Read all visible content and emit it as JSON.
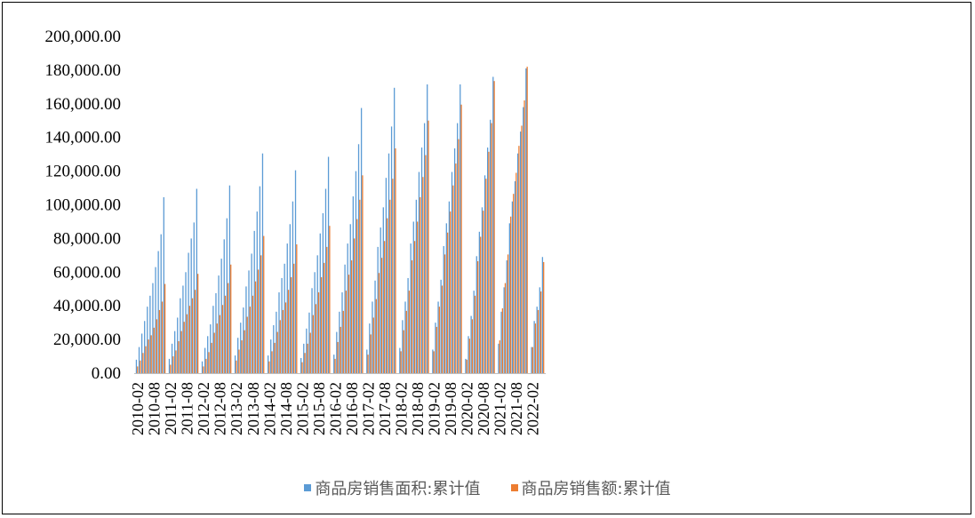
{
  "chart_data": {
    "type": "bar",
    "ylim": [
      0,
      200000
    ],
    "y_ticks": [
      "0.00",
      "20,000.00",
      "40,000.00",
      "60,000.00",
      "80,000.00",
      "100,000.00",
      "120,000.00",
      "140,000.00",
      "160,000.00",
      "180,000.00",
      "200,000.00"
    ],
    "x_ticks": [
      "2010-02",
      "2010-08",
      "2011-02",
      "2011-08",
      "2012-02",
      "2012-08",
      "2013-02",
      "2013-08",
      "2014-02",
      "2014-08",
      "2015-02",
      "2015-08",
      "2016-02",
      "2016-08",
      "2017-02",
      "2017-08",
      "2018-02",
      "2018-08",
      "2019-02",
      "2019-08",
      "2020-02",
      "2020-08",
      "2021-02",
      "2021-08",
      "2022-02"
    ],
    "series": [
      {
        "name": "商品房销售面积:累计值",
        "color": "#5b9bd5"
      },
      {
        "name": "商品房销售额:累计值",
        "color": "#ed7d31"
      }
    ],
    "years": [
      {
        "year": 2010,
        "area": [
          8000,
          15500,
          23500,
          31000,
          39500,
          46000,
          53500,
          63000,
          72500,
          82500,
          104500
        ],
        "amount": [
          4000,
          7500,
          12000,
          16000,
          20000,
          22500,
          27000,
          32000,
          37500,
          42500,
          53000
        ]
      },
      {
        "year": 2011,
        "area": [
          8500,
          17500,
          25000,
          33000,
          44500,
          52000,
          60000,
          71500,
          80000,
          89500,
          109500
        ],
        "amount": [
          5000,
          10000,
          13500,
          19000,
          25000,
          30500,
          35000,
          40000,
          44500,
          49500,
          59000
        ]
      },
      {
        "year": 2012,
        "area": [
          7000,
          15000,
          22000,
          29000,
          40000,
          47500,
          58000,
          68000,
          79500,
          92000,
          111500
        ],
        "amount": [
          4000,
          8500,
          12500,
          18000,
          24000,
          29500,
          34500,
          40500,
          46000,
          53500,
          64500
        ]
      },
      {
        "year": 2013,
        "area": [
          10500,
          21000,
          30000,
          39000,
          51500,
          61000,
          71000,
          84500,
          96000,
          111000,
          130500
        ],
        "amount": [
          7500,
          14000,
          19500,
          25500,
          33500,
          39500,
          46000,
          54500,
          61500,
          70000,
          81500
        ]
      },
      {
        "year": 2014,
        "area": [
          10500,
          20000,
          28500,
          36500,
          48000,
          56500,
          65000,
          77000,
          88500,
          102000,
          120500
        ],
        "amount": [
          7000,
          13000,
          18000,
          24500,
          31500,
          37500,
          42000,
          49500,
          57000,
          65000,
          76500
        ]
      },
      {
        "year": 2015,
        "area": [
          9000,
          17500,
          26500,
          36000,
          50500,
          60000,
          70000,
          83000,
          95000,
          109500,
          128500
        ],
        "amount": [
          6500,
          12000,
          17500,
          24000,
          34500,
          41000,
          48000,
          57000,
          65500,
          75000,
          87500
        ]
      },
      {
        "year": 2016,
        "area": [
          11000,
          24500,
          36500,
          48000,
          64500,
          77000,
          88500,
          105000,
          120000,
          136000,
          157500
        ],
        "amount": [
          8500,
          18500,
          27500,
          37000,
          49000,
          58500,
          67000,
          80000,
          91500,
          103000,
          117500
        ]
      },
      {
        "year": 2017,
        "area": [
          14000,
          29500,
          42500,
          55000,
          75000,
          86500,
          98500,
          116000,
          130500,
          146500,
          169500
        ],
        "amount": [
          11000,
          23000,
          33000,
          44000,
          59500,
          68500,
          78500,
          92000,
          103000,
          115500,
          133500
        ]
      },
      {
        "year": 2018,
        "area": [
          15000,
          31500,
          42500,
          56500,
          77000,
          90000,
          103000,
          119500,
          134000,
          148500,
          171500
        ],
        "amount": [
          13000,
          25500,
          37000,
          49000,
          67000,
          78500,
          90000,
          104500,
          116500,
          129500,
          150000
        ]
      },
      {
        "year": 2019,
        "area": [
          14000,
          30000,
          42500,
          55500,
          75500,
          89000,
          102000,
          119500,
          133500,
          148500,
          171500
        ],
        "amount": [
          13000,
          27500,
          39500,
          52000,
          70500,
          83500,
          96000,
          111500,
          124500,
          139000,
          159500
        ]
      },
      {
        "year": 2020,
        "area": [
          8500,
          22000,
          34000,
          49000,
          69500,
          84000,
          98500,
          117500,
          134000,
          150500,
          176000
        ],
        "amount": [
          8000,
          20500,
          32000,
          46000,
          66500,
          81000,
          96500,
          115500,
          131500,
          148500,
          173500
        ]
      },
      {
        "year": 2021,
        "area": [
          17500,
          36500,
          51000,
          67000,
          89000,
          102000,
          114000,
          130500,
          143500,
          158000,
          181000
        ],
        "amount": [
          19500,
          38500,
          53500,
          70500,
          93000,
          106500,
          119000,
          135000,
          147000,
          162000,
          182000
        ]
      },
      {
        "year": 2022,
        "area": [
          15500,
          31000,
          39500,
          51000,
          69000
        ],
        "amount": [
          15500,
          29500,
          37500,
          48500,
          66000
        ]
      }
    ]
  }
}
